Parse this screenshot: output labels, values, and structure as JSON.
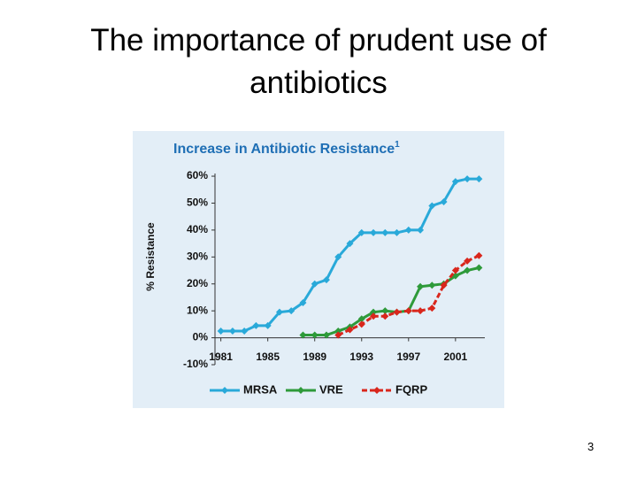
{
  "slide_title": "The importance of prudent use of antibiotics",
  "page_number": "3",
  "chart_data": {
    "type": "line",
    "title": "Increase in Antibiotic Resistance",
    "title_superscript": "1",
    "y_label": "% Resistance",
    "x": [
      1981,
      1982,
      1983,
      1984,
      1985,
      1986,
      1987,
      1988,
      1989,
      1990,
      1991,
      1992,
      1993,
      1994,
      1995,
      1996,
      1997,
      1998,
      1999,
      2000,
      2001,
      2002,
      2003
    ],
    "series": [
      {
        "name": "MRSA",
        "color": "#29a9d9",
        "dashed": false,
        "values": [
          2.5,
          2.5,
          2.5,
          4.5,
          4.5,
          9.5,
          10,
          13,
          20,
          21.5,
          30,
          35,
          39,
          39,
          39,
          39,
          40,
          40,
          49,
          50.5,
          58,
          59,
          59
        ]
      },
      {
        "name": "VRE",
        "color": "#2e9a3a",
        "dashed": false,
        "values": [
          null,
          null,
          null,
          null,
          null,
          null,
          null,
          1,
          1,
          1,
          2.5,
          4,
          7,
          9.5,
          10,
          9.5,
          10,
          19,
          19.5,
          20,
          23,
          25,
          26
        ]
      },
      {
        "name": "FQRP",
        "color": "#d9261c",
        "dashed": true,
        "values": [
          null,
          null,
          null,
          null,
          null,
          null,
          null,
          null,
          null,
          null,
          1,
          3,
          5,
          8,
          8,
          9.5,
          10,
          10,
          11,
          19.5,
          25,
          28.5,
          30.5
        ]
      }
    ],
    "xlim": [
      1980.5,
      2003.5
    ],
    "xticks": [
      1981,
      1985,
      1989,
      1993,
      1997,
      2001
    ],
    "ylim": [
      -10,
      61
    ],
    "yticks": [
      {
        "value": -10,
        "label": "-10%"
      },
      {
        "value": 0,
        "label": "0%"
      },
      {
        "value": 10,
        "label": "10%"
      },
      {
        "value": 20,
        "label": "20%"
      },
      {
        "value": 30,
        "label": "30%"
      },
      {
        "value": 40,
        "label": "40%"
      },
      {
        "value": 50,
        "label": "50%"
      },
      {
        "value": 60,
        "label": "60%"
      }
    ],
    "background": "#e3eef7"
  }
}
